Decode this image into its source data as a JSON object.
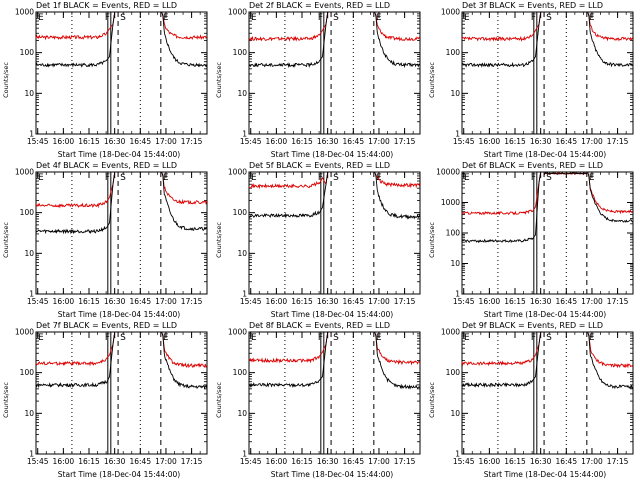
{
  "chart_data": [
    {
      "type": "line",
      "title": "Det 1f BLACK = Events, RED = LLD",
      "xlabel": "Start Time (18-Dec-04 15:44:00)",
      "ylabel": "Counts/sec",
      "yscale": "log",
      "ylim": [
        1,
        1000
      ],
      "xlim": [
        "15:44",
        "17:24"
      ],
      "yticks": [
        "1",
        "10",
        "100",
        "1000"
      ],
      "xticks": [
        "15:45",
        "16:00",
        "16:15",
        "16:30",
        "16:45",
        "17:00",
        "17:15"
      ],
      "markers": [
        {
          "label": "E",
          "time": "15:44",
          "style": "solid"
        },
        {
          "label": "F",
          "time": "16:26",
          "style": "solid"
        },
        {
          "label": "S",
          "time": "16:32",
          "style": "dashed"
        },
        {
          "label": "E",
          "time": "16:57",
          "style": "dashed"
        }
      ],
      "dotted_times": [
        "16:05",
        "16:45"
      ],
      "series": [
        {
          "name": "RED = LLD",
          "color": "#dd0000",
          "before": 240,
          "peak": 1000,
          "after": 240
        },
        {
          "name": "BLACK = Events",
          "color": "#000000",
          "before": 50,
          "peak": 1000,
          "after": 50
        }
      ]
    },
    {
      "type": "line",
      "title": "Det 2f BLACK = Events, RED = LLD",
      "xlabel": "Start Time (18-Dec-04 15:44:00)",
      "ylabel": "Counts/sec",
      "yscale": "log",
      "ylim": [
        1,
        1000
      ],
      "xlim": [
        "15:44",
        "17:24"
      ],
      "yticks": [
        "1",
        "10",
        "100",
        "1000"
      ],
      "xticks": [
        "15:45",
        "16:00",
        "16:15",
        "16:30",
        "16:45",
        "17:00",
        "17:15"
      ],
      "markers": [
        {
          "label": "E",
          "time": "15:44",
          "style": "solid"
        },
        {
          "label": "F",
          "time": "16:26",
          "style": "solid"
        },
        {
          "label": "S",
          "time": "16:32",
          "style": "dashed"
        },
        {
          "label": "E",
          "time": "16:57",
          "style": "dashed"
        }
      ],
      "dotted_times": [
        "16:05",
        "16:45"
      ],
      "series": [
        {
          "name": "RED = LLD",
          "color": "#dd0000",
          "before": 220,
          "peak": 1000,
          "after": 220
        },
        {
          "name": "BLACK = Events",
          "color": "#000000",
          "before": 50,
          "peak": 1000,
          "after": 50
        }
      ]
    },
    {
      "type": "line",
      "title": "Det 3f BLACK = Events, RED = LLD",
      "xlabel": "Start Time (18-Dec-04 15:44:00)",
      "ylabel": "Counts/sec",
      "yscale": "log",
      "ylim": [
        1,
        1000
      ],
      "xlim": [
        "15:44",
        "17:24"
      ],
      "yticks": [
        "1",
        "10",
        "100",
        "1000"
      ],
      "xticks": [
        "15:45",
        "16:00",
        "16:15",
        "16:30",
        "16:45",
        "17:00",
        "17:15"
      ],
      "markers": [
        {
          "label": "E",
          "time": "15:44",
          "style": "solid"
        },
        {
          "label": "F",
          "time": "16:26",
          "style": "solid"
        },
        {
          "label": "S",
          "time": "16:32",
          "style": "dashed"
        },
        {
          "label": "E",
          "time": "16:57",
          "style": "dashed"
        }
      ],
      "dotted_times": [
        "16:05",
        "16:45"
      ],
      "series": [
        {
          "name": "RED = LLD",
          "color": "#dd0000",
          "before": 220,
          "peak": 1000,
          "after": 220
        },
        {
          "name": "BLACK = Events",
          "color": "#000000",
          "before": 50,
          "peak": 1000,
          "after": 50
        }
      ]
    },
    {
      "type": "line",
      "title": "Det 4f BLACK = Events, RED = LLD",
      "xlabel": "Start Time (18-Dec-04 15:44:00)",
      "ylabel": "Counts/sec",
      "yscale": "log",
      "ylim": [
        1,
        1000
      ],
      "xlim": [
        "15:44",
        "17:24"
      ],
      "yticks": [
        "1",
        "10",
        "100",
        "1000"
      ],
      "xticks": [
        "15:45",
        "16:00",
        "16:15",
        "16:30",
        "16:45",
        "17:00",
        "17:15"
      ],
      "markers": [
        {
          "label": "E",
          "time": "15:44",
          "style": "solid"
        },
        {
          "label": "F",
          "time": "16:26",
          "style": "solid"
        },
        {
          "label": "S",
          "time": "16:32",
          "style": "dashed"
        },
        {
          "label": "E",
          "time": "16:57",
          "style": "dashed"
        }
      ],
      "dotted_times": [
        "16:05",
        "16:45"
      ],
      "series": [
        {
          "name": "RED = LLD",
          "color": "#dd0000",
          "before": 150,
          "peak": 1000,
          "after": 180
        },
        {
          "name": "BLACK = Events",
          "color": "#000000",
          "before": 35,
          "peak": 1000,
          "after": 40
        }
      ]
    },
    {
      "type": "line",
      "title": "Det 5f BLACK = Events, RED = LLD",
      "xlabel": "Start Time (18-Dec-04 15:44:00)",
      "ylabel": "Counts/sec",
      "yscale": "log",
      "ylim": [
        1,
        1000
      ],
      "xlim": [
        "15:44",
        "17:24"
      ],
      "yticks": [
        "1",
        "10",
        "100",
        "1000"
      ],
      "xticks": [
        "15:45",
        "16:00",
        "16:15",
        "16:30",
        "16:45",
        "17:00",
        "17:15"
      ],
      "markers": [
        {
          "label": "E",
          "time": "15:44",
          "style": "solid"
        },
        {
          "label": "F",
          "time": "16:26",
          "style": "solid"
        },
        {
          "label": "S",
          "time": "16:32",
          "style": "dashed"
        },
        {
          "label": "E",
          "time": "16:57",
          "style": "dashed"
        }
      ],
      "dotted_times": [
        "16:05",
        "16:45"
      ],
      "series": [
        {
          "name": "RED = LLD",
          "color": "#dd0000",
          "before": 450,
          "peak": 1000,
          "after": 480
        },
        {
          "name": "BLACK = Events",
          "color": "#000000",
          "before": 85,
          "peak": 1000,
          "after": 80
        }
      ]
    },
    {
      "type": "line",
      "title": "Det 6f BLACK = Events, RED = LLD",
      "xlabel": "Start Time (18-Dec-04 15:44:00)",
      "ylabel": "Counts/sec",
      "yscale": "log",
      "ylim": [
        1,
        10000
      ],
      "xlim": [
        "15:44",
        "17:24"
      ],
      "yticks": [
        "1",
        "10",
        "100",
        "1000",
        "10000"
      ],
      "xticks": [
        "15:45",
        "16:00",
        "16:15",
        "16:30",
        "16:45",
        "17:00",
        "17:15"
      ],
      "markers": [
        {
          "label": "E",
          "time": "15:44",
          "style": "solid"
        },
        {
          "label": "F",
          "time": "16:26",
          "style": "solid"
        },
        {
          "label": "S",
          "time": "16:32",
          "style": "dashed"
        },
        {
          "label": "E",
          "time": "16:57",
          "style": "dashed"
        }
      ],
      "dotted_times": [
        "16:05",
        "16:45"
      ],
      "series": [
        {
          "name": "RED = LLD",
          "color": "#dd0000",
          "before": 450,
          "peak": 9000,
          "after": 500
        },
        {
          "name": "BLACK = Events",
          "color": "#000000",
          "before": 55,
          "peak": 9000,
          "after": 250
        }
      ]
    },
    {
      "type": "line",
      "title": "Det 7f BLACK = Events, RED = LLD",
      "xlabel": "Start Time (18-Dec-04 15:44:00)",
      "ylabel": "Counts/sec",
      "yscale": "log",
      "ylim": [
        1,
        1000
      ],
      "xlim": [
        "15:44",
        "17:24"
      ],
      "yticks": [
        "1",
        "10",
        "100",
        "1000"
      ],
      "xticks": [
        "15:45",
        "16:00",
        "16:15",
        "16:30",
        "16:45",
        "17:00",
        "17:15"
      ],
      "markers": [
        {
          "label": "E",
          "time": "15:44",
          "style": "solid"
        },
        {
          "label": "F",
          "time": "16:26",
          "style": "solid"
        },
        {
          "label": "S",
          "time": "16:32",
          "style": "dashed"
        },
        {
          "label": "E",
          "time": "16:57",
          "style": "dashed"
        }
      ],
      "dotted_times": [
        "16:05",
        "16:45"
      ],
      "series": [
        {
          "name": "RED = LLD",
          "color": "#dd0000",
          "before": 170,
          "peak": 1000,
          "after": 150
        },
        {
          "name": "BLACK = Events",
          "color": "#000000",
          "before": 50,
          "peak": 1000,
          "after": 45
        }
      ]
    },
    {
      "type": "line",
      "title": "Det 8f BLACK = Events, RED = LLD",
      "xlabel": "Start Time (18-Dec-04 15:44:00)",
      "ylabel": "Counts/sec",
      "yscale": "log",
      "ylim": [
        1,
        1000
      ],
      "xlim": [
        "15:44",
        "17:24"
      ],
      "yticks": [
        "1",
        "10",
        "100",
        "1000"
      ],
      "xticks": [
        "15:45",
        "16:00",
        "16:15",
        "16:30",
        "16:45",
        "17:00",
        "17:15"
      ],
      "markers": [
        {
          "label": "E",
          "time": "15:44",
          "style": "solid"
        },
        {
          "label": "F",
          "time": "16:26",
          "style": "solid"
        },
        {
          "label": "S",
          "time": "16:32",
          "style": "dashed"
        },
        {
          "label": "E",
          "time": "16:57",
          "style": "dashed"
        }
      ],
      "dotted_times": [
        "16:05",
        "16:45"
      ],
      "series": [
        {
          "name": "RED = LLD",
          "color": "#dd0000",
          "before": 200,
          "peak": 1000,
          "after": 180
        },
        {
          "name": "BLACK = Events",
          "color": "#000000",
          "before": 50,
          "peak": 1000,
          "after": 45
        }
      ]
    },
    {
      "type": "line",
      "title": "Det 9f BLACK = Events, RED = LLD",
      "xlabel": "Start Time (18-Dec-04 15:44:00)",
      "ylabel": "Counts/sec",
      "yscale": "log",
      "ylim": [
        1,
        1000
      ],
      "xlim": [
        "15:44",
        "17:24"
      ],
      "yticks": [
        "1",
        "10",
        "100",
        "1000"
      ],
      "xticks": [
        "15:45",
        "16:00",
        "16:15",
        "16:30",
        "16:45",
        "17:00",
        "17:15"
      ],
      "markers": [
        {
          "label": "E",
          "time": "15:44",
          "style": "solid"
        },
        {
          "label": "F",
          "time": "16:26",
          "style": "solid"
        },
        {
          "label": "S",
          "time": "16:32",
          "style": "dashed"
        },
        {
          "label": "E",
          "time": "16:57",
          "style": "dashed"
        }
      ],
      "dotted_times": [
        "16:05",
        "16:45"
      ],
      "series": [
        {
          "name": "RED = LLD",
          "color": "#dd0000",
          "before": 170,
          "peak": 1000,
          "after": 150
        },
        {
          "name": "BLACK = Events",
          "color": "#000000",
          "before": 50,
          "peak": 1000,
          "after": 45
        }
      ]
    }
  ]
}
